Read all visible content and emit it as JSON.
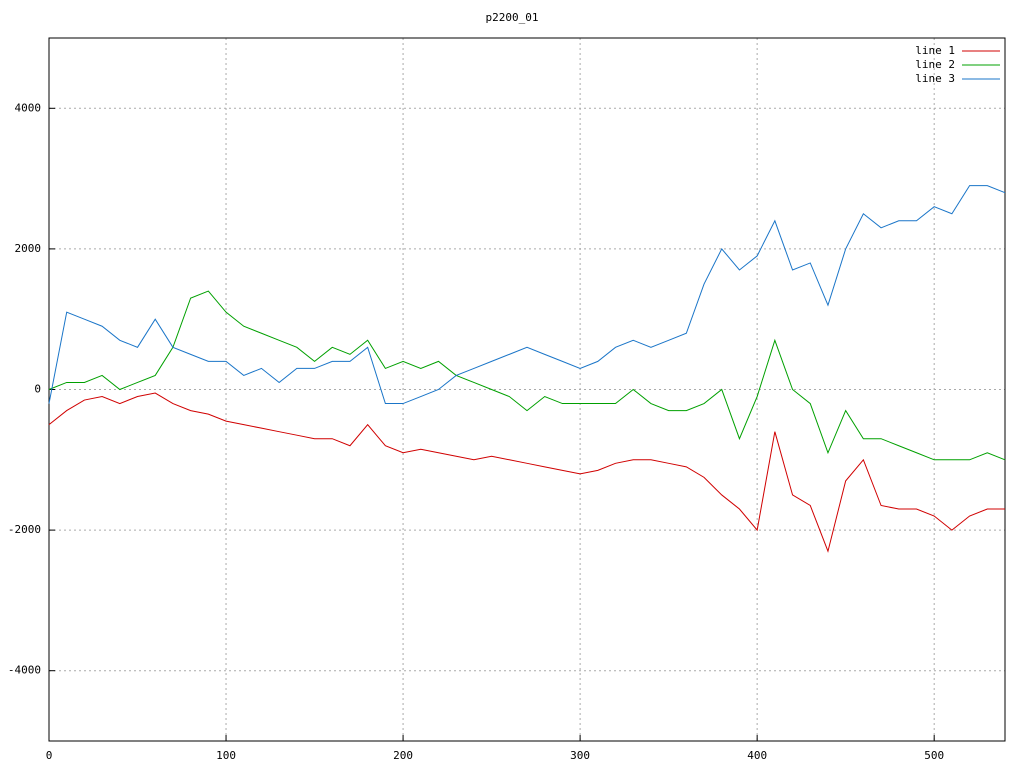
{
  "chart_data": {
    "type": "line",
    "title": "p2200_01",
    "x": [
      0,
      10,
      20,
      30,
      40,
      50,
      60,
      70,
      80,
      90,
      100,
      110,
      120,
      130,
      140,
      150,
      160,
      170,
      180,
      190,
      200,
      210,
      220,
      230,
      240,
      250,
      260,
      270,
      280,
      290,
      300,
      310,
      320,
      330,
      340,
      350,
      360,
      370,
      380,
      390,
      400,
      410,
      420,
      430,
      440,
      450,
      460,
      470,
      480,
      490,
      500,
      510,
      520,
      530,
      540
    ],
    "series": [
      {
        "name": "line 1",
        "color": "#d00000",
        "values": [
          -500,
          -300,
          -150,
          -100,
          -200,
          -100,
          -50,
          -200,
          -300,
          -350,
          -450,
          -500,
          -550,
          -600,
          -650,
          -700,
          -700,
          -800,
          -500,
          -800,
          -900,
          -850,
          -900,
          -950,
          -1000,
          -950,
          -1000,
          -1050,
          -1100,
          -1150,
          -1200,
          -1150,
          -1050,
          -1000,
          -1000,
          -1050,
          -1100,
          -1250,
          -1500,
          -1700,
          -2000,
          -600,
          -1500,
          -1650,
          -2300,
          -1300,
          -1000,
          -1650,
          -1700,
          -1700,
          -1800,
          -2000,
          -1800,
          -1700,
          -1700
        ]
      },
      {
        "name": "line 2",
        "color": "#00a000",
        "values": [
          0,
          100,
          100,
          200,
          0,
          100,
          200,
          600,
          1300,
          1400,
          1100,
          900,
          800,
          700,
          600,
          400,
          600,
          500,
          700,
          300,
          400,
          300,
          400,
          200,
          100,
          0,
          -100,
          -300,
          -100,
          -200,
          -200,
          -200,
          -200,
          0,
          -200,
          -300,
          -300,
          -200,
          0,
          -700,
          -100,
          700,
          0,
          -200,
          -900,
          -300,
          -700,
          -700,
          -800,
          -900,
          -1000,
          -1000,
          -1000,
          -900,
          -1000
        ]
      },
      {
        "name": "line 3",
        "color": "#1a75c8",
        "values": [
          -200,
          1100,
          1000,
          900,
          700,
          600,
          1000,
          600,
          500,
          400,
          400,
          200,
          300,
          100,
          300,
          300,
          400,
          400,
          600,
          -200,
          -200,
          -100,
          0,
          200,
          300,
          400,
          500,
          600,
          500,
          400,
          300,
          400,
          600,
          700,
          600,
          700,
          800,
          1500,
          2000,
          1700,
          1900,
          2400,
          1700,
          1800,
          1200,
          2000,
          2500,
          2300,
          2400,
          2400,
          2600,
          2500,
          2900,
          2900,
          2800
        ]
      }
    ],
    "xlim": [
      0,
      540
    ],
    "xticks": [
      0,
      100,
      200,
      300,
      400,
      500
    ],
    "ylim": [
      -5000,
      5000
    ],
    "yticks": [
      -4000,
      -2000,
      0,
      2000,
      4000
    ],
    "grid": true,
    "legend": "top-right"
  }
}
